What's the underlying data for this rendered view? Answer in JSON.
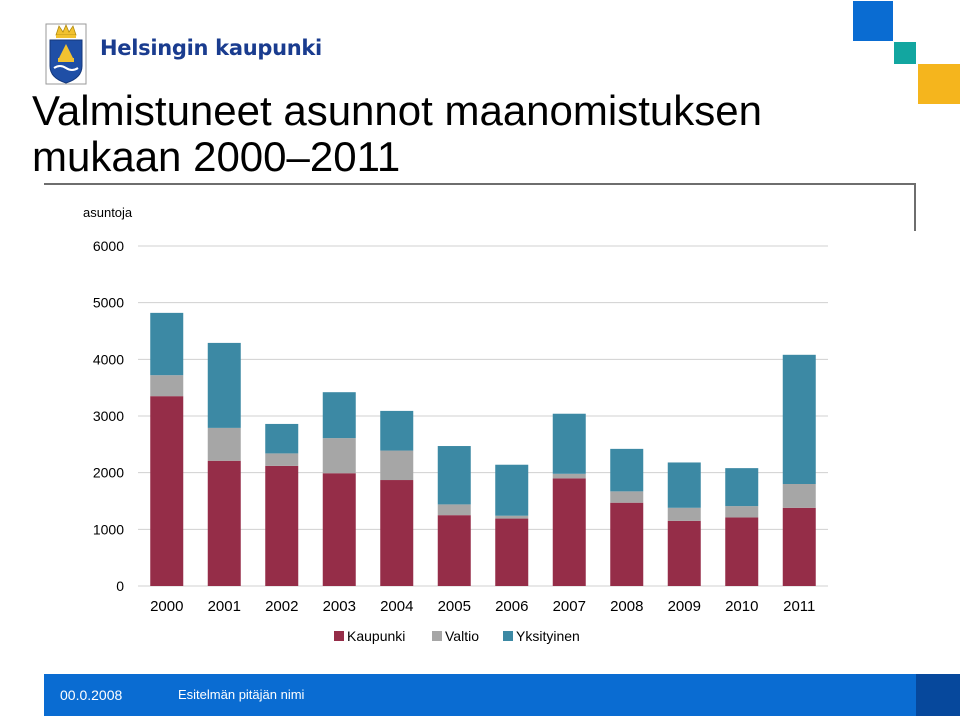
{
  "header": {
    "brand": "Helsingin kaupunki",
    "title_line1": "Valmistuneet asunnot maanomistuksen",
    "title_line2": "mukaan 2000–2011"
  },
  "footer": {
    "date": "00.0.2008",
    "author": "Esitelmän pitäjän nimi"
  },
  "colors": {
    "brand": "#1a3c8f",
    "footer": "#0a6cd2",
    "footer_dark": "#06489c",
    "deco_blue": "#0a6cd2",
    "deco_teal": "#12a6a0",
    "deco_yellow": "#f5b51d"
  },
  "chart_data": {
    "type": "bar",
    "stacked": true,
    "ylabel": "asuntoja",
    "ylim": [
      0,
      6000
    ],
    "yticks": [
      0,
      1000,
      2000,
      3000,
      4000,
      5000,
      6000
    ],
    "grid": true,
    "legend_position": "bottom",
    "categories": [
      "2000",
      "2001",
      "2002",
      "2003",
      "2004",
      "2005",
      "2006",
      "2007",
      "2008",
      "2009",
      "2010",
      "2011"
    ],
    "series": [
      {
        "name": "Kaupunki",
        "color": "#952d48",
        "values": [
          3350,
          2210,
          2120,
          1990,
          1870,
          1250,
          1190,
          1900,
          1470,
          1150,
          1210,
          1380
        ]
      },
      {
        "name": "Valtio",
        "color": "#a6a6a6",
        "values": [
          370,
          580,
          220,
          620,
          520,
          190,
          50,
          80,
          200,
          230,
          200,
          420
        ]
      },
      {
        "name": "Yksityinen",
        "color": "#3c89a4",
        "values": [
          1100,
          1500,
          520,
          810,
          700,
          1030,
          900,
          1060,
          750,
          800,
          670,
          2280
        ]
      }
    ]
  }
}
